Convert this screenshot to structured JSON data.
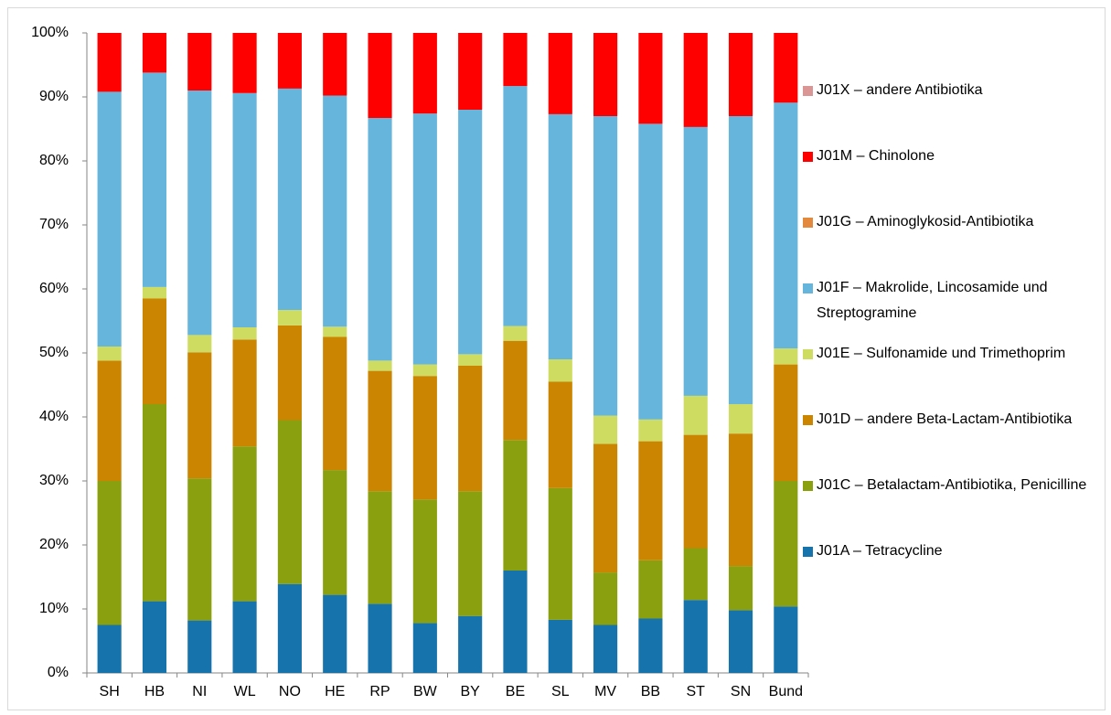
{
  "chart_data": {
    "type": "stacked_bar",
    "categories": [
      "SH",
      "HB",
      "NI",
      "WL",
      "NO",
      "HE",
      "RP",
      "BW",
      "BY",
      "BE",
      "SL",
      "MV",
      "BB",
      "ST",
      "SN",
      "Bund"
    ],
    "series": [
      {
        "name": "J01A – Tetracycline",
        "color": "#1773ab",
        "values": [
          7.5,
          11.2,
          8.2,
          11.2,
          13.9,
          12.2,
          10.8,
          7.8,
          8.9,
          16,
          8.3,
          7.5,
          8.5,
          11.4,
          9.8,
          10.4
        ]
      },
      {
        "name": "J01C – Betalactam-Antibiotika, Penicilline",
        "color": "#8aa00e",
        "values": [
          22.5,
          30.8,
          22.2,
          24.2,
          25.6,
          19.5,
          17.6,
          19.3,
          19.5,
          20.4,
          20.6,
          8.2,
          9.1,
          8.1,
          6.9,
          19.6
        ]
      },
      {
        "name": "J01D – andere Beta-Lactam-Antibiotika",
        "color": "#cc8500",
        "values": [
          18.8,
          16.5,
          19.7,
          16.7,
          14.8,
          20.8,
          18.8,
          19.3,
          19.6,
          15.5,
          16.6,
          20.1,
          18.6,
          17.7,
          20.7,
          18.2
        ]
      },
      {
        "name": "J01E – Sulfonamide und Trimethoprim",
        "color": "#cfdc62",
        "values": [
          2.2,
          1.8,
          2.7,
          1.9,
          2.4,
          1.6,
          1.6,
          1.8,
          1.8,
          2.3,
          3.5,
          4.4,
          3.4,
          6.1,
          4.6,
          2.5
        ]
      },
      {
        "name": "J01F – Makrolide, Lincosamide und Streptogramine",
        "color": "#66b5dc",
        "values": [
          39.8,
          33.5,
          38.2,
          36.6,
          34.6,
          36.1,
          37.9,
          39.2,
          38.2,
          37.5,
          38.3,
          46.8,
          46.2,
          42.0,
          45.0,
          38.4
        ]
      },
      {
        "name": "J01G – Aminoglykosid-Antibiotika",
        "color": "#e3893d",
        "values": [
          0,
          0,
          0,
          0,
          0,
          0,
          0,
          0,
          0,
          0,
          0,
          0,
          0,
          0,
          0,
          0
        ]
      },
      {
        "name": "J01M – Chinolone",
        "color": "#ff0000",
        "values": [
          9.2,
          6.2,
          9.0,
          9.4,
          8.7,
          9.8,
          13.3,
          12.6,
          12.0,
          8.3,
          12.7,
          13.0,
          14.2,
          14.7,
          13.0,
          10.9
        ]
      },
      {
        "name": "J01X – andere Antibiotika",
        "color": "#d99694",
        "values": [
          0,
          0,
          0,
          0,
          0,
          0,
          0,
          0,
          0,
          0,
          0,
          0,
          0,
          0,
          0,
          0
        ]
      }
    ],
    "ylim": [
      0,
      100
    ],
    "yticks": [
      {
        "value": 0,
        "label": "0%"
      },
      {
        "value": 10,
        "label": "10%"
      },
      {
        "value": 20,
        "label": "20%"
      },
      {
        "value": 30,
        "label": "30%"
      },
      {
        "value": 40,
        "label": "40%"
      },
      {
        "value": 50,
        "label": "50%"
      },
      {
        "value": 60,
        "label": "60%"
      },
      {
        "value": 70,
        "label": "70%"
      },
      {
        "value": 80,
        "label": "80%"
      },
      {
        "value": 90,
        "label": "90%"
      },
      {
        "value": 100,
        "label": "100%"
      }
    ],
    "legend": "right"
  }
}
